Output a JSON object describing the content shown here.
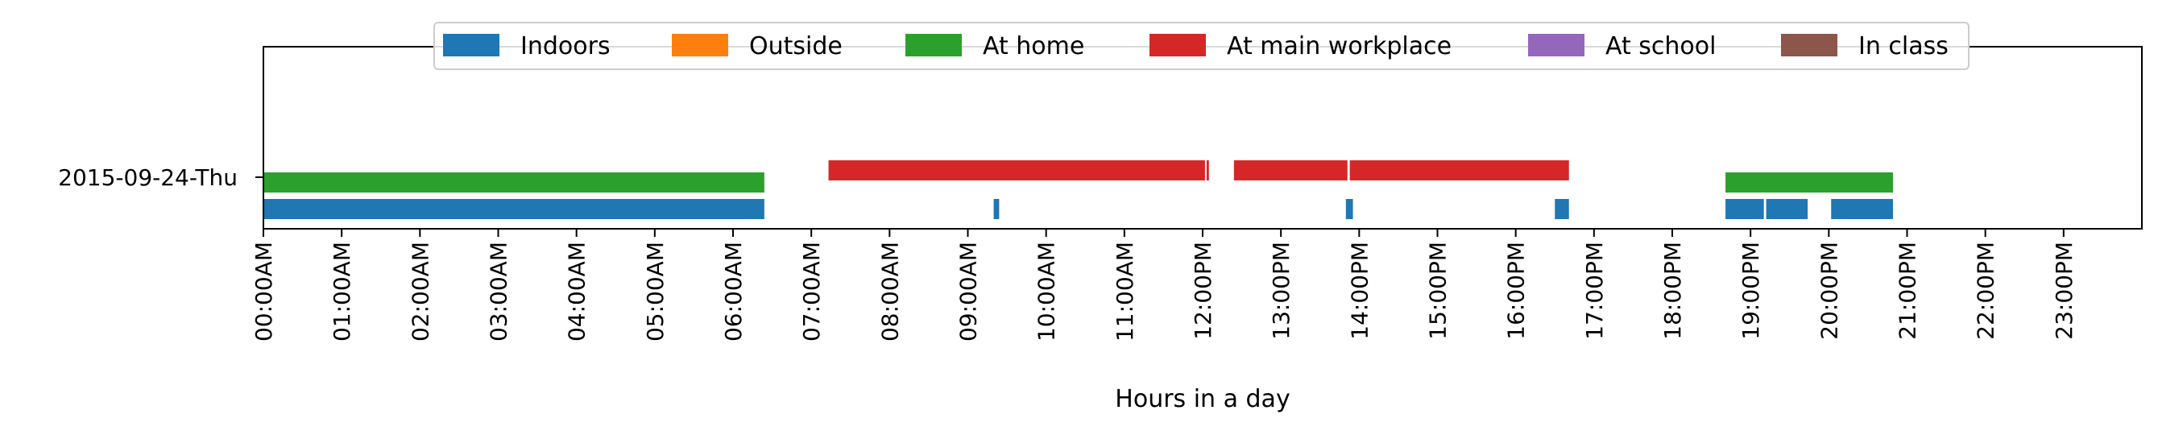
{
  "chart_data": {
    "type": "timeline",
    "xlabel": "Hours in a day",
    "xlim": [
      0,
      24
    ],
    "row_label": "2015-09-24-Thu",
    "x_ticks": [
      {
        "value": 0,
        "label": "00:00AM"
      },
      {
        "value": 1,
        "label": "01:00AM"
      },
      {
        "value": 2,
        "label": "02:00AM"
      },
      {
        "value": 3,
        "label": "03:00AM"
      },
      {
        "value": 4,
        "label": "04:00AM"
      },
      {
        "value": 5,
        "label": "05:00AM"
      },
      {
        "value": 6,
        "label": "06:00AM"
      },
      {
        "value": 7,
        "label": "07:00AM"
      },
      {
        "value": 8,
        "label": "08:00AM"
      },
      {
        "value": 9,
        "label": "09:00AM"
      },
      {
        "value": 10,
        "label": "10:00AM"
      },
      {
        "value": 11,
        "label": "11:00AM"
      },
      {
        "value": 12,
        "label": "12:00PM"
      },
      {
        "value": 13,
        "label": "13:00PM"
      },
      {
        "value": 14,
        "label": "14:00PM"
      },
      {
        "value": 15,
        "label": "15:00PM"
      },
      {
        "value": 16,
        "label": "16:00PM"
      },
      {
        "value": 17,
        "label": "17:00PM"
      },
      {
        "value": 18,
        "label": "18:00PM"
      },
      {
        "value": 19,
        "label": "19:00PM"
      },
      {
        "value": 20,
        "label": "20:00PM"
      },
      {
        "value": 21,
        "label": "21:00PM"
      },
      {
        "value": 22,
        "label": "22:00PM"
      },
      {
        "value": 23,
        "label": "23:00PM"
      }
    ],
    "legend": {
      "placement": "top-center",
      "entries": [
        {
          "name": "Indoors",
          "color": "#1f77b4"
        },
        {
          "name": "Outside",
          "color": "#ff7f0e"
        },
        {
          "name": "At home",
          "color": "#2ca02c"
        },
        {
          "name": "At main workplace",
          "color": "#d62728"
        },
        {
          "name": "At school",
          "color": "#9467bd"
        },
        {
          "name": "In class",
          "color": "#8c564b"
        }
      ]
    },
    "series": [
      {
        "name": "Indoors",
        "color": "#1f77b4",
        "lane": 0,
        "intervals": [
          [
            0.0,
            6.4
          ],
          [
            9.33,
            9.4
          ],
          [
            13.83,
            13.92
          ],
          [
            16.5,
            16.68
          ],
          [
            18.68,
            19.17
          ],
          [
            19.2,
            19.73
          ],
          [
            20.03,
            20.82
          ]
        ]
      },
      {
        "name": "Outside",
        "color": "#ff7f0e",
        "lane": 1,
        "intervals": []
      },
      {
        "name": "At home",
        "color": "#2ca02c",
        "lane": 1,
        "intervals": [
          [
            0.0,
            6.4
          ],
          [
            18.68,
            20.82
          ]
        ]
      },
      {
        "name": "At main workplace",
        "color": "#d62728",
        "lane": 2,
        "intervals": [
          [
            7.22,
            12.03
          ],
          [
            12.05,
            12.08
          ],
          [
            12.4,
            13.85
          ],
          [
            13.88,
            16.68
          ]
        ]
      },
      {
        "name": "At school",
        "color": "#9467bd",
        "lane": 3,
        "intervals": []
      },
      {
        "name": "In class",
        "color": "#8c564b",
        "lane": 3,
        "intervals": []
      }
    ]
  }
}
